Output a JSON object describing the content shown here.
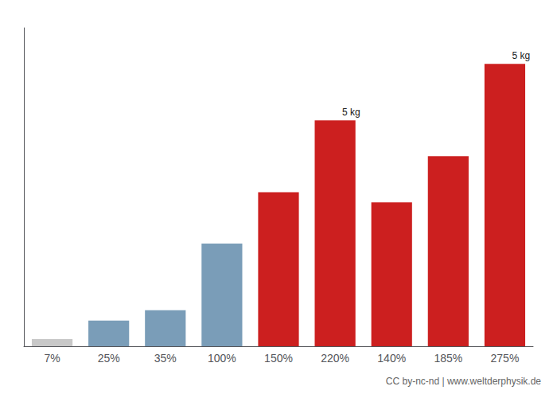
{
  "chart_data": {
    "type": "bar",
    "categories": [
      "7%",
      "25%",
      "35%",
      "100%",
      "150%",
      "220%",
      "140%",
      "185%",
      "275%"
    ],
    "values": [
      7,
      25,
      35,
      100,
      150,
      220,
      140,
      185,
      275
    ],
    "colors": [
      "#c8c8c8",
      "#7a9db8",
      "#7a9db8",
      "#7a9db8",
      "#cc1f1f",
      "#cc1f1f",
      "#cc1f1f",
      "#cc1f1f",
      "#cc1f1f"
    ],
    "ylim": [
      0,
      310
    ],
    "tick_labels": "x",
    "grid": false,
    "annotations": [
      {
        "text": "5 kg",
        "x": "220%",
        "y": 220
      },
      {
        "text": "5 kg",
        "x": "275%",
        "y": 275
      }
    ],
    "footer": "CC by-nc-nd | www.weltderphysik.de"
  }
}
